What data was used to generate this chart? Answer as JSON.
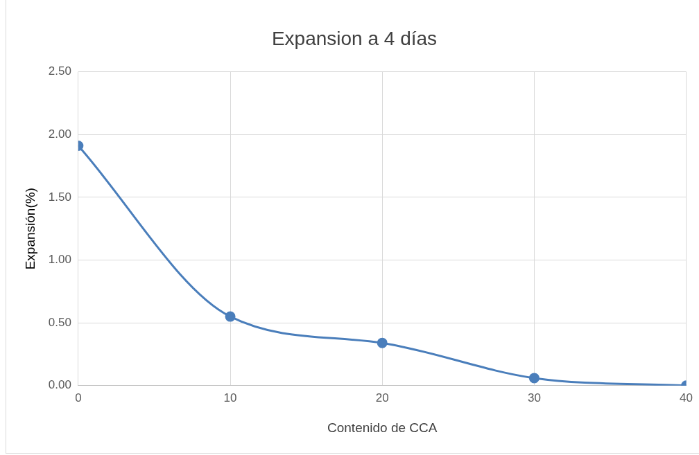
{
  "chart_data": {
    "type": "line",
    "title": "Expansion a 4 días",
    "xlabel": "Contenido de CCA",
    "ylabel": "Expansión(%)",
    "x": [
      0,
      10,
      20,
      30,
      40
    ],
    "series": [
      {
        "color": "#4a7ebb",
        "values": [
          1.91,
          0.55,
          0.34,
          0.06,
          0.0
        ]
      }
    ],
    "xlim": [
      0,
      40
    ],
    "xticks": [
      0,
      10,
      20,
      30,
      40
    ],
    "ylim": [
      0,
      2.5
    ],
    "yticks": [
      {
        "value": 0,
        "label": "0.00"
      },
      {
        "value": 0.5,
        "label": "0.50"
      },
      {
        "value": 1,
        "label": "1.00"
      },
      {
        "value": 1.5,
        "label": "1.50"
      },
      {
        "value": 2,
        "label": "2.00"
      },
      {
        "value": 2.5,
        "label": "2.50"
      }
    ],
    "grid": true,
    "marker": "circle",
    "line_style": "solid"
  }
}
